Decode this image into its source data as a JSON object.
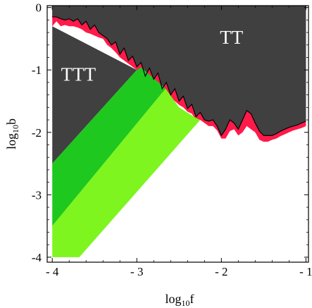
{
  "chart_data": {
    "type": "area",
    "title": "",
    "xlabel": {
      "prefix": "log",
      "sub": "10",
      "var": "f"
    },
    "ylabel": {
      "prefix": "log",
      "sub": "10",
      "var": "b"
    },
    "xlim": [
      -4.06,
      -0.97
    ],
    "ylim": [
      -4.08,
      0.03
    ],
    "xticks": [
      -4,
      -3,
      -2,
      -1
    ],
    "yticks": [
      0,
      -1,
      -2,
      -3,
      -4
    ],
    "xtick_labels": [
      "- 4",
      "- 3",
      "- 2",
      "- 1"
    ],
    "ytick_labels": [
      "0",
      "-1",
      "-2",
      "-3",
      "-4"
    ],
    "regions": [
      {
        "name": "TT",
        "label": "TT",
        "label_at": [
          -1.88,
          -0.58
        ],
        "color": "#404040"
      },
      {
        "name": "TTT",
        "label": "TTT",
        "label_at": [
          -3.69,
          -1.17
        ],
        "color": "#404040"
      }
    ],
    "green_bands": [
      {
        "color": "#1ec81e",
        "points": [
          [
            -4.0,
            -2.5
          ],
          [
            -3.0,
            -1.0
          ],
          [
            -2.95,
            -0.96
          ],
          [
            -2.7,
            -1.25
          ],
          [
            -2.66,
            -1.3
          ],
          [
            -4.0,
            -3.5
          ]
        ]
      },
      {
        "color": "#7ef51e",
        "points": [
          [
            -4.0,
            -3.5
          ],
          [
            -2.66,
            -1.3
          ],
          [
            -2.5,
            -1.6
          ],
          [
            -2.3,
            -1.77
          ],
          [
            -2.25,
            -1.8
          ],
          [
            -3.68,
            -4.0
          ],
          [
            -4.0,
            -4.0
          ]
        ]
      }
    ],
    "boundary_curve": {
      "color": "#000000",
      "band_color": "#ff1a4a",
      "x": [
        -4.0,
        -3.95,
        -3.9,
        -3.85,
        -3.8,
        -3.75,
        -3.7,
        -3.65,
        -3.6,
        -3.55,
        -3.5,
        -3.45,
        -3.4,
        -3.35,
        -3.3,
        -3.25,
        -3.2,
        -3.15,
        -3.1,
        -3.05,
        -3.0,
        -2.95,
        -2.9,
        -2.85,
        -2.8,
        -2.75,
        -2.7,
        -2.65,
        -2.6,
        -2.55,
        -2.5,
        -2.45,
        -2.4,
        -2.35,
        -2.3,
        -2.25,
        -2.2,
        -2.15,
        -2.1,
        -2.05,
        -2.0,
        -1.95,
        -1.9,
        -1.85,
        -1.8,
        -1.75,
        -1.7,
        -1.65,
        -1.6,
        -1.55,
        -1.5,
        -1.45,
        -1.4,
        -1.35,
        -1.3,
        -1.25,
        -1.2,
        -1.15,
        -1.1,
        -1.05,
        -1.0
      ],
      "y": [
        -0.15,
        -0.15,
        -0.18,
        -0.2,
        -0.18,
        -0.22,
        -0.18,
        -0.28,
        -0.22,
        -0.35,
        -0.28,
        -0.4,
        -0.45,
        -0.5,
        -0.6,
        -0.55,
        -0.75,
        -0.65,
        -0.85,
        -0.78,
        -0.95,
        -0.88,
        -1.1,
        -0.97,
        -1.15,
        -1.05,
        -1.3,
        -1.2,
        -1.4,
        -1.3,
        -1.5,
        -1.42,
        -1.62,
        -1.55,
        -1.75,
        -1.68,
        -1.8,
        -1.82,
        -1.8,
        -1.9,
        -2.05,
        -1.95,
        -1.8,
        -1.85,
        -1.95,
        -1.8,
        -1.65,
        -1.7,
        -1.85,
        -1.98,
        -2.05,
        -2.05,
        -2.05,
        -2.02,
        -1.98,
        -1.95,
        -1.92,
        -1.9,
        -1.88,
        -1.85,
        -1.82
      ],
      "band_lower": [
        -0.3,
        -0.22,
        -0.3,
        -0.28,
        -0.3,
        -0.3,
        -0.32,
        -0.35,
        -0.4,
        -0.42,
        -0.45,
        -0.48,
        -0.5,
        -0.6,
        -0.65,
        -0.72,
        -0.8,
        -0.85,
        -0.9,
        -0.95,
        -1.0,
        -1.05,
        -1.15,
        -1.2,
        -1.22,
        -1.28,
        -1.36,
        -1.4,
        -1.45,
        -1.5,
        -1.56,
        -1.6,
        -1.67,
        -1.7,
        -1.8,
        -1.8,
        -1.85,
        -1.9,
        -1.9,
        -1.97,
        -2.1,
        -2.1,
        -1.98,
        -1.95,
        -2.05,
        -2.0,
        -1.9,
        -1.95,
        -2.0,
        -2.12,
        -2.15,
        -2.15,
        -2.12,
        -2.1,
        -2.06,
        -2.03,
        -2.0,
        -1.97,
        -1.95,
        -1.93,
        -1.9
      ]
    }
  }
}
